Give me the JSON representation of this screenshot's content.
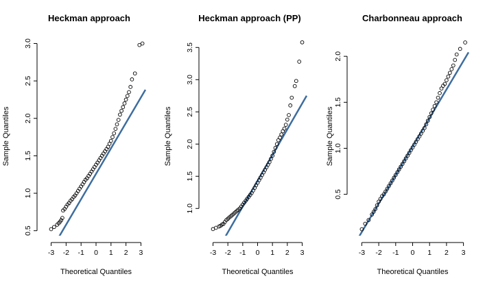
{
  "chart_data": [
    {
      "type": "scatter",
      "title": "Heckman approach",
      "xlabel": "Theoretical Quantiles",
      "ylabel": "Sample Quantiles",
      "xlim": [
        -3.3,
        3.3
      ],
      "ylim": [
        0.47,
        3.05
      ],
      "xticks": [
        -3,
        -2,
        -1,
        0,
        1,
        2,
        3
      ],
      "yticks": [
        0.5,
        1.0,
        1.5,
        2.0,
        2.5,
        3.0
      ],
      "ytick_labels": [
        "0.5",
        "1.0",
        "1.5",
        "2.0",
        "2.5",
        "3.0"
      ],
      "reference_line": {
        "slope": 0.34,
        "intercept": 1.26,
        "color": "#3d6d9e"
      },
      "point_color": "#000000",
      "points": [
        [
          -3.0,
          0.52
        ],
        [
          -2.8,
          0.55
        ],
        [
          -2.6,
          0.58
        ],
        [
          -2.5,
          0.6
        ],
        [
          -2.4,
          0.62
        ],
        [
          -2.33,
          0.64
        ],
        [
          -2.25,
          0.67
        ],
        [
          -2.2,
          0.77
        ],
        [
          -2.1,
          0.79
        ],
        [
          -2.0,
          0.82
        ],
        [
          -1.9,
          0.85
        ],
        [
          -1.8,
          0.87
        ],
        [
          -1.7,
          0.9
        ],
        [
          -1.6,
          0.92
        ],
        [
          -1.5,
          0.95
        ],
        [
          -1.4,
          0.97
        ],
        [
          -1.3,
          1.0
        ],
        [
          -1.2,
          1.03
        ],
        [
          -1.1,
          1.06
        ],
        [
          -1.0,
          1.09
        ],
        [
          -0.9,
          1.12
        ],
        [
          -0.8,
          1.15
        ],
        [
          -0.7,
          1.18
        ],
        [
          -0.6,
          1.2
        ],
        [
          -0.5,
          1.23
        ],
        [
          -0.4,
          1.26
        ],
        [
          -0.3,
          1.29
        ],
        [
          -0.2,
          1.32
        ],
        [
          -0.1,
          1.35
        ],
        [
          0.0,
          1.38
        ],
        [
          0.1,
          1.41
        ],
        [
          0.2,
          1.44
        ],
        [
          0.3,
          1.47
        ],
        [
          0.4,
          1.5
        ],
        [
          0.5,
          1.53
        ],
        [
          0.6,
          1.56
        ],
        [
          0.7,
          1.59
        ],
        [
          0.8,
          1.62
        ],
        [
          0.9,
          1.66
        ],
        [
          1.0,
          1.7
        ],
        [
          1.1,
          1.75
        ],
        [
          1.2,
          1.8
        ],
        [
          1.3,
          1.86
        ],
        [
          1.4,
          1.92
        ],
        [
          1.5,
          1.98
        ],
        [
          1.6,
          2.05
        ],
        [
          1.7,
          2.1
        ],
        [
          1.8,
          2.15
        ],
        [
          1.9,
          2.2
        ],
        [
          2.0,
          2.25
        ],
        [
          2.1,
          2.3
        ],
        [
          2.2,
          2.35
        ],
        [
          2.3,
          2.42
        ],
        [
          2.4,
          2.52
        ],
        [
          2.6,
          2.6
        ],
        [
          2.9,
          2.98
        ],
        [
          3.1,
          3.0
        ]
      ]
    },
    {
      "type": "scatter",
      "title": "Heckman approach (PP)",
      "xlabel": "Theoretical Quantiles",
      "ylabel": "Sample Quantiles",
      "xlim": [
        -3.3,
        3.3
      ],
      "ylim": [
        0.62,
        3.62
      ],
      "xticks": [
        -3,
        -2,
        -1,
        0,
        1,
        2,
        3
      ],
      "yticks": [
        1.0,
        1.5,
        2.0,
        2.5,
        3.0,
        3.5
      ],
      "ytick_labels": [
        "1.0",
        "1.5",
        "2.0",
        "2.5",
        "3.0",
        "3.5"
      ],
      "reference_line": {
        "slope": 0.4,
        "intercept": 1.43,
        "color": "#3d6d9e"
      },
      "point_color": "#000000",
      "points": [
        [
          -3.0,
          0.68
        ],
        [
          -2.8,
          0.7
        ],
        [
          -2.6,
          0.72
        ],
        [
          -2.5,
          0.73
        ],
        [
          -2.4,
          0.75
        ],
        [
          -2.3,
          0.76
        ],
        [
          -2.2,
          0.79
        ],
        [
          -2.1,
          0.82
        ],
        [
          -2.0,
          0.84
        ],
        [
          -1.9,
          0.86
        ],
        [
          -1.8,
          0.88
        ],
        [
          -1.7,
          0.9
        ],
        [
          -1.6,
          0.92
        ],
        [
          -1.5,
          0.94
        ],
        [
          -1.4,
          0.96
        ],
        [
          -1.3,
          0.98
        ],
        [
          -1.2,
          1.0
        ],
        [
          -1.1,
          1.03
        ],
        [
          -1.0,
          1.06
        ],
        [
          -0.9,
          1.09
        ],
        [
          -0.8,
          1.12
        ],
        [
          -0.7,
          1.15
        ],
        [
          -0.6,
          1.18
        ],
        [
          -0.5,
          1.21
        ],
        [
          -0.4,
          1.24
        ],
        [
          -0.3,
          1.28
        ],
        [
          -0.2,
          1.32
        ],
        [
          -0.1,
          1.36
        ],
        [
          0.0,
          1.4
        ],
        [
          0.1,
          1.44
        ],
        [
          0.2,
          1.48
        ],
        [
          0.3,
          1.52
        ],
        [
          0.4,
          1.56
        ],
        [
          0.5,
          1.6
        ],
        [
          0.6,
          1.64
        ],
        [
          0.7,
          1.68
        ],
        [
          0.8,
          1.72
        ],
        [
          0.9,
          1.77
        ],
        [
          1.0,
          1.82
        ],
        [
          1.1,
          1.88
        ],
        [
          1.2,
          1.94
        ],
        [
          1.3,
          2.0
        ],
        [
          1.4,
          2.06
        ],
        [
          1.5,
          2.1
        ],
        [
          1.6,
          2.15
        ],
        [
          1.7,
          2.2
        ],
        [
          1.8,
          2.24
        ],
        [
          1.9,
          2.3
        ],
        [
          2.0,
          2.38
        ],
        [
          2.1,
          2.45
        ],
        [
          2.2,
          2.6
        ],
        [
          2.3,
          2.72
        ],
        [
          2.5,
          2.9
        ],
        [
          2.6,
          2.98
        ],
        [
          2.8,
          3.28
        ],
        [
          3.0,
          3.58
        ]
      ]
    },
    {
      "type": "scatter",
      "title": "Charbonneau approach",
      "xlabel": "Theoretical Quantiles",
      "ylabel": "Sample Quantiles",
      "xlim": [
        -3.3,
        3.3
      ],
      "ylim": [
        0.08,
        2.18
      ],
      "xticks": [
        -3,
        -2,
        -1,
        0,
        1,
        2,
        3
      ],
      "yticks": [
        0.5,
        1.0,
        1.5,
        2.0
      ],
      "ytick_labels": [
        "0.5",
        "1.0",
        "1.5",
        "2.0"
      ],
      "reference_line": {
        "slope": 0.31,
        "intercept": 1.02,
        "color": "#3d6d9e"
      },
      "point_color": "#000000",
      "points": [
        [
          -3.0,
          0.12
        ],
        [
          -2.8,
          0.18
        ],
        [
          -2.6,
          0.22
        ],
        [
          -2.4,
          0.28
        ],
        [
          -2.3,
          0.31
        ],
        [
          -2.2,
          0.34
        ],
        [
          -2.1,
          0.38
        ],
        [
          -2.0,
          0.42
        ],
        [
          -1.9,
          0.45
        ],
        [
          -1.8,
          0.48
        ],
        [
          -1.7,
          0.5
        ],
        [
          -1.6,
          0.53
        ],
        [
          -1.5,
          0.56
        ],
        [
          -1.4,
          0.59
        ],
        [
          -1.3,
          0.62
        ],
        [
          -1.2,
          0.65
        ],
        [
          -1.1,
          0.68
        ],
        [
          -1.0,
          0.71
        ],
        [
          -0.9,
          0.74
        ],
        [
          -0.8,
          0.77
        ],
        [
          -0.7,
          0.8
        ],
        [
          -0.6,
          0.83
        ],
        [
          -0.5,
          0.86
        ],
        [
          -0.4,
          0.89
        ],
        [
          -0.3,
          0.92
        ],
        [
          -0.2,
          0.95
        ],
        [
          -0.1,
          0.98
        ],
        [
          0.0,
          1.01
        ],
        [
          0.1,
          1.04
        ],
        [
          0.2,
          1.07
        ],
        [
          0.3,
          1.1
        ],
        [
          0.4,
          1.13
        ],
        [
          0.5,
          1.16
        ],
        [
          0.6,
          1.19
        ],
        [
          0.7,
          1.22
        ],
        [
          0.8,
          1.26
        ],
        [
          0.9,
          1.3
        ],
        [
          1.0,
          1.34
        ],
        [
          1.1,
          1.38
        ],
        [
          1.2,
          1.42
        ],
        [
          1.3,
          1.46
        ],
        [
          1.4,
          1.5
        ],
        [
          1.5,
          1.55
        ],
        [
          1.6,
          1.6
        ],
        [
          1.7,
          1.65
        ],
        [
          1.8,
          1.68
        ],
        [
          1.9,
          1.7
        ],
        [
          2.0,
          1.74
        ],
        [
          2.1,
          1.78
        ],
        [
          2.2,
          1.82
        ],
        [
          2.3,
          1.86
        ],
        [
          2.4,
          1.9
        ],
        [
          2.5,
          1.96
        ],
        [
          2.6,
          2.02
        ],
        [
          2.8,
          2.08
        ],
        [
          3.1,
          2.15
        ]
      ]
    }
  ]
}
